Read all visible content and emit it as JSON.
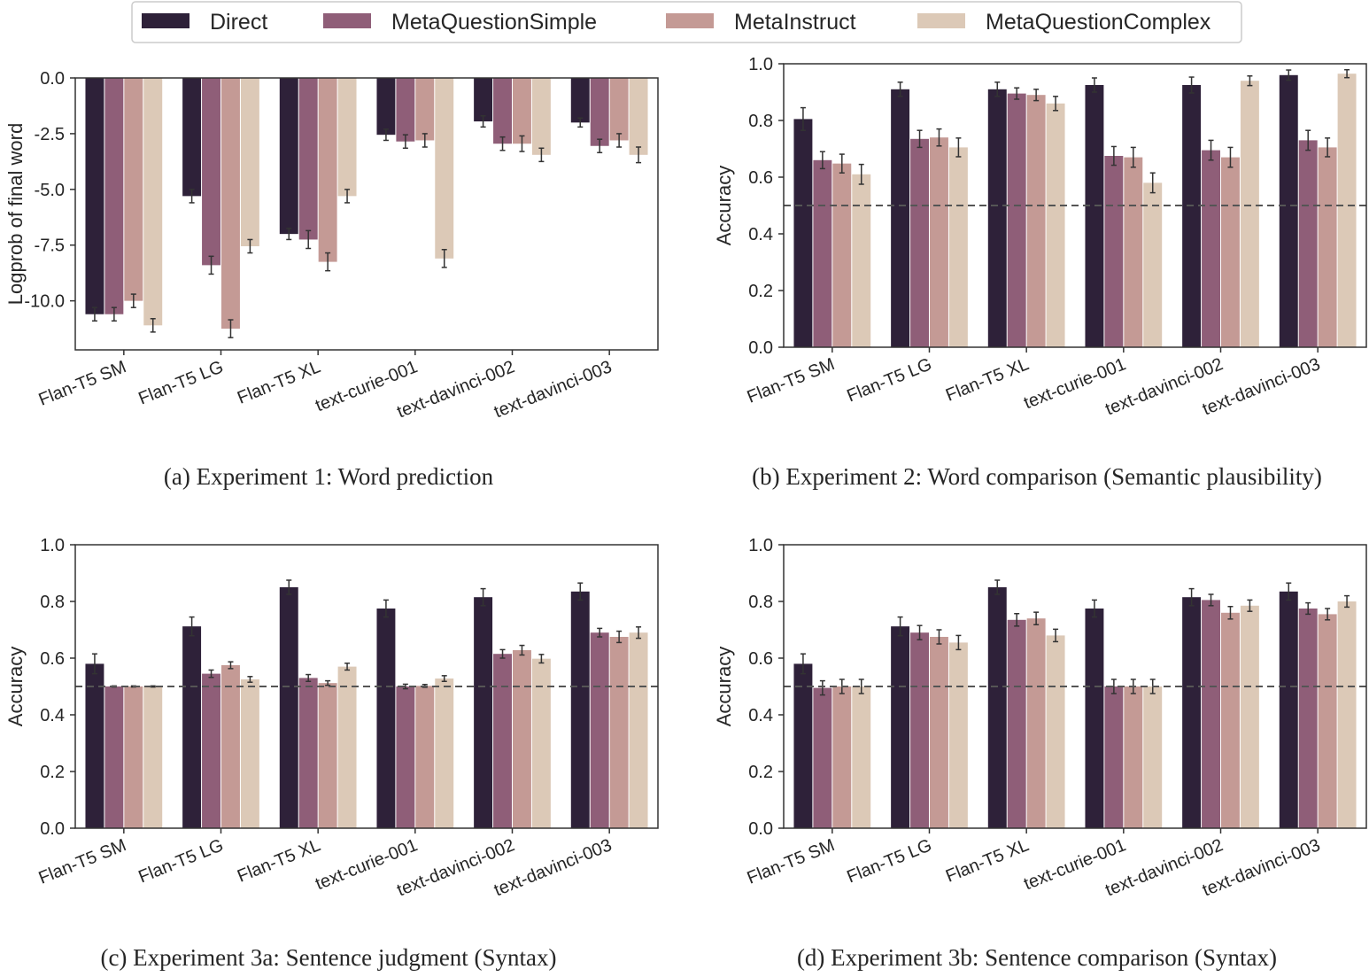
{
  "colors": {
    "Direct": "#2e2139",
    "MetaQuestionSimple": "#8f5e78",
    "MetaInstruct": "#c49a95",
    "MetaQuestionComplex": "#dcc9b7"
  },
  "legend": {
    "placement": "top-center",
    "entries": [
      "Direct",
      "MetaQuestionSimple",
      "MetaInstruct",
      "MetaQuestionComplex"
    ]
  },
  "chart_data": [
    {
      "type": "bar",
      "caption": "(a) Experiment 1: Word prediction",
      "ylabel": "Logprob of final word",
      "ylim": [
        -12.2,
        0
      ],
      "yticks": [
        "0.0",
        "-2.5",
        "-5.0",
        "-7.5",
        "-10.0"
      ],
      "ytick_values": [
        0,
        -2.5,
        -5,
        -7.5,
        -10
      ],
      "reference_line": null,
      "categories": [
        "Flan-T5 SM",
        "Flan-T5 LG",
        "Flan-T5 XL",
        "text-curie-001",
        "text-davinci-002",
        "text-davinci-003"
      ],
      "series": [
        {
          "name": "Direct",
          "values": [
            -10.6,
            -5.3,
            -7.0,
            -2.55,
            -1.95,
            -2.0
          ],
          "error": [
            0.3,
            0.3,
            0.25,
            0.25,
            0.25,
            0.2
          ]
        },
        {
          "name": "MetaQuestionSimple",
          "values": [
            -10.6,
            -8.4,
            -7.25,
            -2.85,
            -2.95,
            -3.05
          ],
          "error": [
            0.3,
            0.4,
            0.4,
            0.3,
            0.3,
            0.3
          ]
        },
        {
          "name": "MetaInstruct",
          "values": [
            -10.0,
            -11.25,
            -8.25,
            -2.8,
            -2.95,
            -2.8
          ],
          "error": [
            0.3,
            0.4,
            0.4,
            0.3,
            0.35,
            0.3
          ]
        },
        {
          "name": "MetaQuestionComplex",
          "values": [
            -11.1,
            -7.55,
            -5.3,
            -8.1,
            -3.45,
            -3.45
          ],
          "error": [
            0.3,
            0.3,
            0.3,
            0.4,
            0.3,
            0.35
          ]
        }
      ]
    },
    {
      "type": "bar",
      "caption": "(b) Experiment 2: Word comparison (Semantic plausibility)",
      "ylabel": "Accuracy",
      "ylim": [
        0,
        1.0
      ],
      "yticks": [
        "0.0",
        "0.2",
        "0.4",
        "0.6",
        "0.8",
        "1.0"
      ],
      "ytick_values": [
        0,
        0.2,
        0.4,
        0.6,
        0.8,
        1.0
      ],
      "reference_line": 0.5,
      "categories": [
        "Flan-T5 SM",
        "Flan-T5 LG",
        "Flan-T5 XL",
        "text-curie-001",
        "text-davinci-002",
        "text-davinci-003"
      ],
      "series": [
        {
          "name": "Direct",
          "values": [
            0.805,
            0.91,
            0.91,
            0.925,
            0.925,
            0.96
          ],
          "error": [
            0.04,
            0.025,
            0.025,
            0.025,
            0.028,
            0.018
          ]
        },
        {
          "name": "MetaQuestionSimple",
          "values": [
            0.66,
            0.735,
            0.895,
            0.675,
            0.695,
            0.73
          ],
          "error": [
            0.03,
            0.03,
            0.02,
            0.033,
            0.035,
            0.035
          ]
        },
        {
          "name": "MetaInstruct",
          "values": [
            0.648,
            0.74,
            0.89,
            0.67,
            0.67,
            0.705
          ],
          "error": [
            0.033,
            0.03,
            0.02,
            0.035,
            0.035,
            0.033
          ]
        },
        {
          "name": "MetaQuestionComplex",
          "values": [
            0.61,
            0.705,
            0.86,
            0.58,
            0.94,
            0.965
          ],
          "error": [
            0.035,
            0.033,
            0.025,
            0.035,
            0.017,
            0.014
          ]
        }
      ]
    },
    {
      "type": "bar",
      "caption": "(c) Experiment 3a: Sentence judgment (Syntax)",
      "ylabel": "Accuracy",
      "ylim": [
        0,
        1.0
      ],
      "yticks": [
        "0.0",
        "0.2",
        "0.4",
        "0.6",
        "0.8",
        "1.0"
      ],
      "ytick_values": [
        0,
        0.2,
        0.4,
        0.6,
        0.8,
        1.0
      ],
      "reference_line": 0.5,
      "categories": [
        "Flan-T5 SM",
        "Flan-T5 LG",
        "Flan-T5 XL",
        "text-curie-001",
        "text-davinci-002",
        "text-davinci-003"
      ],
      "series": [
        {
          "name": "Direct",
          "values": [
            0.58,
            0.712,
            0.85,
            0.775,
            0.815,
            0.835
          ],
          "error": [
            0.035,
            0.033,
            0.025,
            0.03,
            0.03,
            0.03
          ]
        },
        {
          "name": "MetaQuestionSimple",
          "values": [
            0.5,
            0.545,
            0.53,
            0.5,
            0.615,
            0.69
          ],
          "error": [
            0.002,
            0.013,
            0.012,
            0.008,
            0.015,
            0.015
          ]
        },
        {
          "name": "MetaInstruct",
          "values": [
            0.5,
            0.575,
            0.512,
            0.502,
            0.628,
            0.675
          ],
          "error": [
            0.002,
            0.012,
            0.008,
            0.005,
            0.017,
            0.02
          ]
        },
        {
          "name": "MetaQuestionComplex",
          "values": [
            0.5,
            0.525,
            0.57,
            0.528,
            0.598,
            0.69
          ],
          "error": [
            0.002,
            0.01,
            0.012,
            0.01,
            0.015,
            0.02
          ]
        }
      ]
    },
    {
      "type": "bar",
      "caption": "(d) Experiment 3b: Sentence comparison (Syntax)",
      "ylabel": "Accuracy",
      "ylim": [
        0,
        1.0
      ],
      "yticks": [
        "0.0",
        "0.2",
        "0.4",
        "0.6",
        "0.8",
        "1.0"
      ],
      "ytick_values": [
        0,
        0.2,
        0.4,
        0.6,
        0.8,
        1.0
      ],
      "reference_line": 0.5,
      "categories": [
        "Flan-T5 SM",
        "Flan-T5 LG",
        "Flan-T5 XL",
        "text-curie-001",
        "text-davinci-002",
        "text-davinci-003"
      ],
      "series": [
        {
          "name": "Direct",
          "values": [
            0.58,
            0.712,
            0.85,
            0.775,
            0.815,
            0.835
          ],
          "error": [
            0.035,
            0.033,
            0.025,
            0.03,
            0.03,
            0.03
          ]
        },
        {
          "name": "MetaQuestionSimple",
          "values": [
            0.495,
            0.69,
            0.735,
            0.5,
            0.805,
            0.775
          ],
          "error": [
            0.025,
            0.025,
            0.022,
            0.025,
            0.02,
            0.02
          ]
        },
        {
          "name": "MetaInstruct",
          "values": [
            0.5,
            0.675,
            0.74,
            0.5,
            0.76,
            0.755
          ],
          "error": [
            0.025,
            0.025,
            0.022,
            0.025,
            0.022,
            0.02
          ]
        },
        {
          "name": "MetaQuestionComplex",
          "values": [
            0.5,
            0.655,
            0.68,
            0.5,
            0.785,
            0.8
          ],
          "error": [
            0.025,
            0.025,
            0.022,
            0.025,
            0.02,
            0.02
          ]
        }
      ]
    }
  ]
}
